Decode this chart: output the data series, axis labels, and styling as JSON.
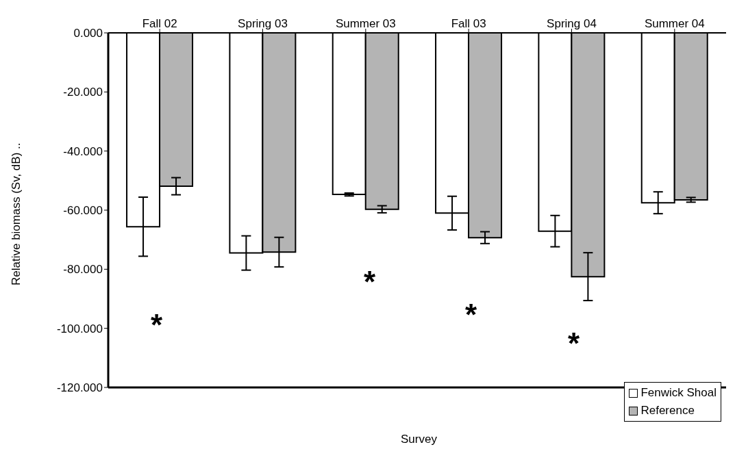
{
  "chart_data": {
    "type": "bar",
    "categories": [
      "Fall 02",
      "Spring 03",
      "Summer 03",
      "Fall 03",
      "Spring 04",
      "Summer 04"
    ],
    "xlabel": "Survey",
    "ylabel": "Relative biomass (Sv, dB) ..",
    "ylim": [
      -120,
      0
    ],
    "yticks": [
      {
        "value": -120,
        "label": "-120.000"
      },
      {
        "value": -100,
        "label": "-100.000"
      },
      {
        "value": -80,
        "label": "-80.000"
      },
      {
        "value": -60,
        "label": "-60.000"
      },
      {
        "value": -40,
        "label": "-40.000"
      },
      {
        "value": -20,
        "label": "-20.000"
      },
      {
        "value": 0,
        "label": "0.000"
      }
    ],
    "series": [
      {
        "name": "Fenwick Shoal",
        "color": "#ffffff",
        "values": [
          -65.6,
          -74.5,
          -54.7,
          -61.0,
          -67.1,
          -57.5
        ],
        "errors": [
          10,
          5.8,
          0.5,
          5.7,
          5.3,
          3.7
        ]
      },
      {
        "name": "Reference",
        "color": "#b4b4b4",
        "values": [
          -51.9,
          -74.2,
          -59.7,
          -69.3,
          -82.5,
          -56.5
        ],
        "errors": [
          2.9,
          5,
          1.2,
          2,
          8.1,
          0.8
        ]
      }
    ],
    "annotations": [
      "*",
      "*",
      "*",
      "*"
    ],
    "legend": "bottom right",
    "grid": false
  }
}
